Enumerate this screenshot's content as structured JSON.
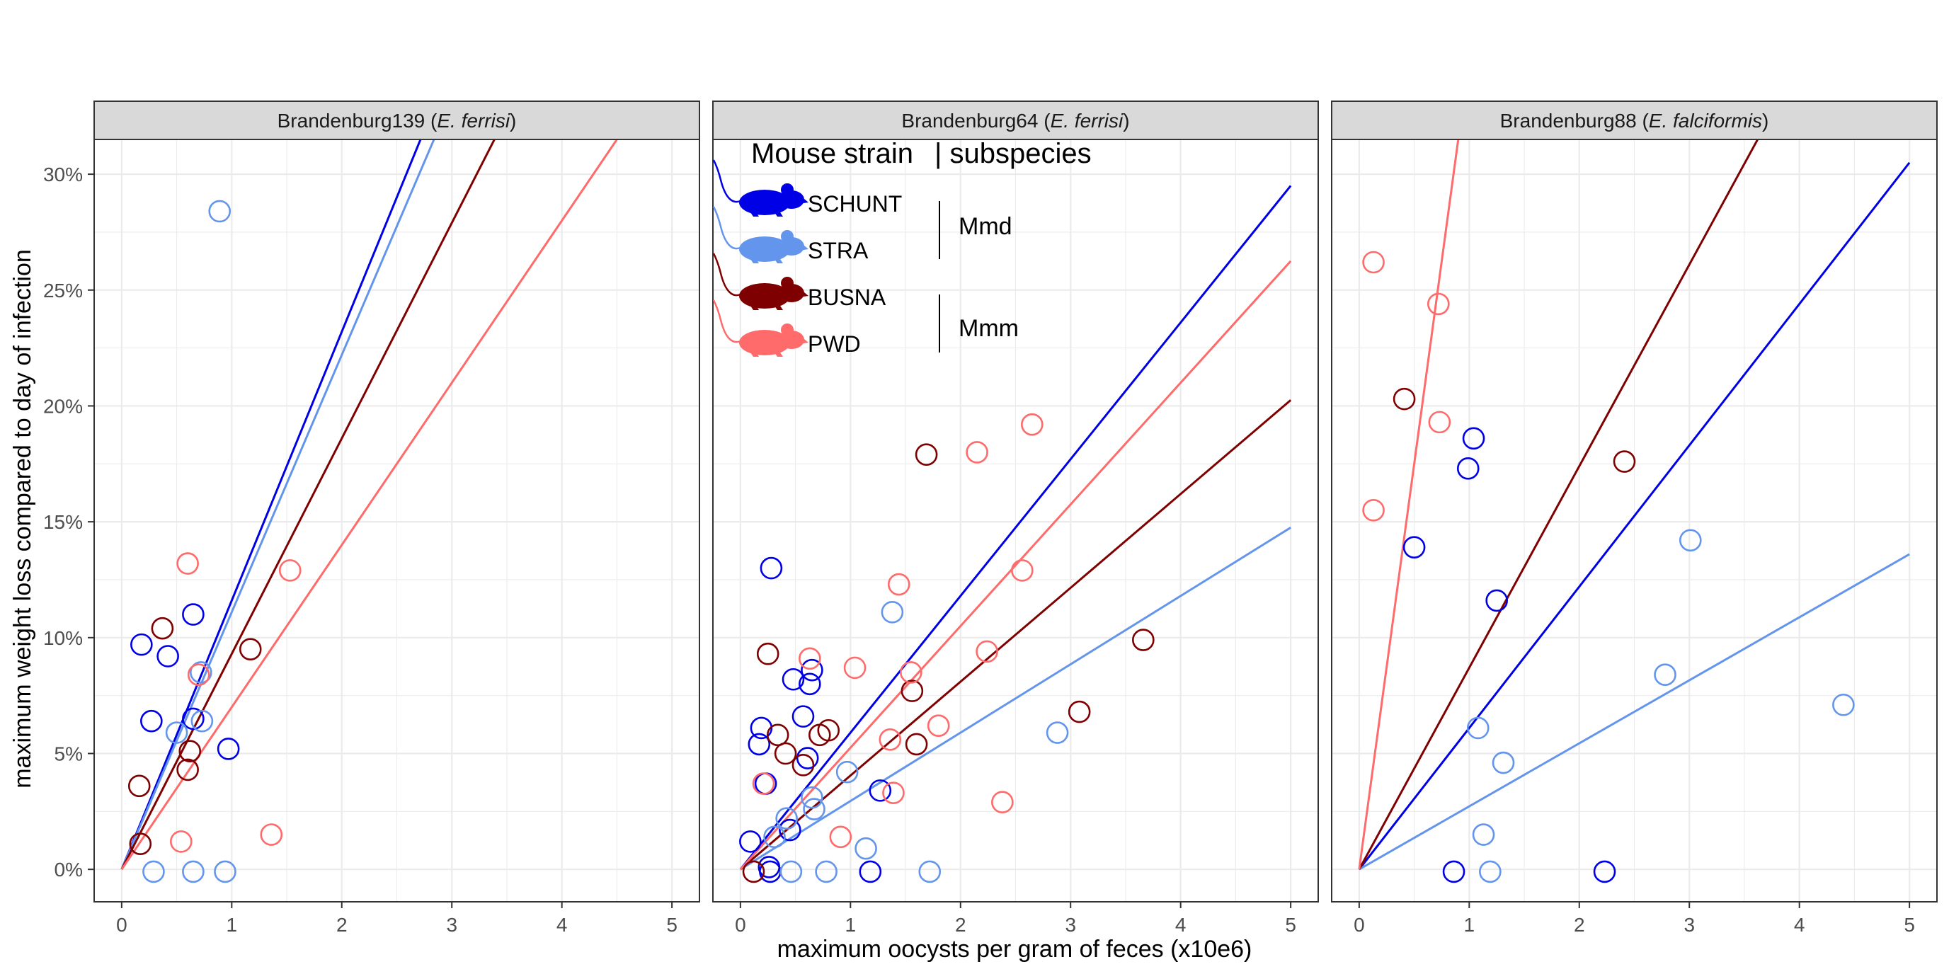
{
  "chart_data": {
    "type": "scatter",
    "xlabel": "maximum oocysts per gram of feces (x10e6)",
    "ylabel": "maximum weight loss compared to day of infection",
    "xlim": [
      -0.25,
      5.25
    ],
    "ylim": [
      -1.4,
      31.5
    ],
    "x_ticks": [
      "0",
      "1",
      "2",
      "3",
      "4",
      "5"
    ],
    "y_ticks": [
      "0%",
      "5%",
      "10%",
      "15%",
      "20%",
      "25%",
      "30%"
    ],
    "grid": true,
    "series_colors": {
      "SCHUNT": "#0000e6",
      "STRA": "#6495ed",
      "BUSNA": "#7f0000",
      "PWD": "#ff6a6a"
    },
    "legend": {
      "title": "Mouse strain",
      "title_right": "| subspecies",
      "items": [
        {
          "label": "SCHUNT",
          "color": "#0000e6"
        },
        {
          "label": "STRA",
          "color": "#6495ed"
        },
        {
          "label": "BUSNA",
          "color": "#7f0000"
        },
        {
          "label": "PWD",
          "color": "#ff6a6a"
        }
      ],
      "groups": [
        {
          "label": "Mmd"
        },
        {
          "label": "Mmm"
        }
      ],
      "icon": "mouse-silhouette-icon"
    },
    "panels": [
      {
        "strip_main": "Brandenburg139 (",
        "strip_italic": "E. ferrisi",
        "strip_end": ")",
        "lines": [
          {
            "series": "SCHUNT",
            "slope": 11.6
          },
          {
            "series": "STRA",
            "slope": 11.1
          },
          {
            "series": "BUSNA",
            "slope": 9.3
          },
          {
            "series": "PWD",
            "slope": 7.0
          }
        ],
        "points": [
          {
            "series": "SCHUNT",
            "x": 0.18,
            "y": 9.7
          },
          {
            "series": "SCHUNT",
            "x": 0.42,
            "y": 9.2
          },
          {
            "series": "SCHUNT",
            "x": 0.65,
            "y": 11.0
          },
          {
            "series": "SCHUNT",
            "x": 0.27,
            "y": 6.4
          },
          {
            "series": "SCHUNT",
            "x": 0.65,
            "y": 6.5
          },
          {
            "series": "SCHUNT",
            "x": 0.97,
            "y": 5.2
          },
          {
            "series": "STRA",
            "x": 0.89,
            "y": 28.4
          },
          {
            "series": "STRA",
            "x": 0.72,
            "y": 8.5
          },
          {
            "series": "STRA",
            "x": 0.5,
            "y": 5.9
          },
          {
            "series": "STRA",
            "x": 0.73,
            "y": 6.4
          },
          {
            "series": "STRA",
            "x": 0.29,
            "y": -0.1
          },
          {
            "series": "STRA",
            "x": 0.65,
            "y": -0.1
          },
          {
            "series": "STRA",
            "x": 0.94,
            "y": -0.1
          },
          {
            "series": "BUSNA",
            "x": 0.37,
            "y": 10.4
          },
          {
            "series": "BUSNA",
            "x": 1.17,
            "y": 9.5
          },
          {
            "series": "BUSNA",
            "x": 0.16,
            "y": 3.6
          },
          {
            "series": "BUSNA",
            "x": 0.62,
            "y": 5.1
          },
          {
            "series": "BUSNA",
            "x": 0.6,
            "y": 4.3
          },
          {
            "series": "BUSNA",
            "x": 0.17,
            "y": 1.1
          },
          {
            "series": "PWD",
            "x": 0.6,
            "y": 13.2
          },
          {
            "series": "PWD",
            "x": 1.53,
            "y": 12.9
          },
          {
            "series": "PWD",
            "x": 0.7,
            "y": 8.4
          },
          {
            "series": "PWD",
            "x": 0.54,
            "y": 1.2
          },
          {
            "series": "PWD",
            "x": 1.36,
            "y": 1.5
          }
        ]
      },
      {
        "strip_main": "Brandenburg64 (",
        "strip_italic": "E. ferrisi",
        "strip_end": ")",
        "lines": [
          {
            "series": "SCHUNT",
            "slope": 5.9
          },
          {
            "series": "STRA",
            "slope": 2.95
          },
          {
            "series": "BUSNA",
            "slope": 4.05
          },
          {
            "series": "PWD",
            "slope": 5.25
          }
        ],
        "points": [
          {
            "series": "SCHUNT",
            "x": 0.28,
            "y": 13.0
          },
          {
            "series": "SCHUNT",
            "x": 0.48,
            "y": 8.2
          },
          {
            "series": "SCHUNT",
            "x": 0.63,
            "y": 8.0
          },
          {
            "series": "SCHUNT",
            "x": 0.65,
            "y": 8.6
          },
          {
            "series": "SCHUNT",
            "x": 0.57,
            "y": 6.6
          },
          {
            "series": "SCHUNT",
            "x": 0.19,
            "y": 6.1
          },
          {
            "series": "SCHUNT",
            "x": 0.17,
            "y": 5.4
          },
          {
            "series": "SCHUNT",
            "x": 0.61,
            "y": 4.8
          },
          {
            "series": "SCHUNT",
            "x": 0.23,
            "y": 3.7
          },
          {
            "series": "SCHUNT",
            "x": 1.27,
            "y": 3.4
          },
          {
            "series": "SCHUNT",
            "x": 0.45,
            "y": 1.7
          },
          {
            "series": "SCHUNT",
            "x": 0.09,
            "y": 1.2
          },
          {
            "series": "SCHUNT",
            "x": 0.26,
            "y": 0.1
          },
          {
            "series": "SCHUNT",
            "x": 0.27,
            "y": -0.1
          },
          {
            "series": "SCHUNT",
            "x": 1.18,
            "y": -0.1
          },
          {
            "series": "STRA",
            "x": 1.38,
            "y": 11.1
          },
          {
            "series": "STRA",
            "x": 2.88,
            "y": 5.9
          },
          {
            "series": "STRA",
            "x": 0.97,
            "y": 4.2
          },
          {
            "series": "STRA",
            "x": 0.65,
            "y": 3.1
          },
          {
            "series": "STRA",
            "x": 0.67,
            "y": 2.6
          },
          {
            "series": "STRA",
            "x": 0.42,
            "y": 2.2
          },
          {
            "series": "STRA",
            "x": 0.31,
            "y": 1.4
          },
          {
            "series": "STRA",
            "x": 1.14,
            "y": 0.9
          },
          {
            "series": "STRA",
            "x": 0.46,
            "y": -0.1
          },
          {
            "series": "STRA",
            "x": 0.78,
            "y": -0.1
          },
          {
            "series": "STRA",
            "x": 1.72,
            "y": -0.1
          },
          {
            "series": "BUSNA",
            "x": 1.69,
            "y": 17.9
          },
          {
            "series": "BUSNA",
            "x": 3.66,
            "y": 9.9
          },
          {
            "series": "BUSNA",
            "x": 0.25,
            "y": 9.3
          },
          {
            "series": "BUSNA",
            "x": 1.56,
            "y": 7.7
          },
          {
            "series": "BUSNA",
            "x": 3.08,
            "y": 6.8
          },
          {
            "series": "BUSNA",
            "x": 0.8,
            "y": 6.0
          },
          {
            "series": "BUSNA",
            "x": 0.72,
            "y": 5.8
          },
          {
            "series": "BUSNA",
            "x": 0.34,
            "y": 5.8
          },
          {
            "series": "BUSNA",
            "x": 1.6,
            "y": 5.4
          },
          {
            "series": "BUSNA",
            "x": 0.41,
            "y": 5.0
          },
          {
            "series": "BUSNA",
            "x": 0.57,
            "y": 4.5
          },
          {
            "series": "BUSNA",
            "x": 0.12,
            "y": -0.1
          },
          {
            "series": "PWD",
            "x": 2.65,
            "y": 19.2
          },
          {
            "series": "PWD",
            "x": 2.15,
            "y": 18.0
          },
          {
            "series": "PWD",
            "x": 2.56,
            "y": 12.9
          },
          {
            "series": "PWD",
            "x": 1.44,
            "y": 12.3
          },
          {
            "series": "PWD",
            "x": 2.24,
            "y": 9.4
          },
          {
            "series": "PWD",
            "x": 0.63,
            "y": 9.1
          },
          {
            "series": "PWD",
            "x": 1.04,
            "y": 8.7
          },
          {
            "series": "PWD",
            "x": 1.55,
            "y": 8.5
          },
          {
            "series": "PWD",
            "x": 1.8,
            "y": 6.2
          },
          {
            "series": "PWD",
            "x": 1.36,
            "y": 5.6
          },
          {
            "series": "PWD",
            "x": 1.39,
            "y": 3.3
          },
          {
            "series": "PWD",
            "x": 2.38,
            "y": 2.9
          },
          {
            "series": "PWD",
            "x": 0.91,
            "y": 1.4
          },
          {
            "series": "PWD",
            "x": 0.21,
            "y": 3.7
          }
        ]
      },
      {
        "strip_main": "Brandenburg88 (",
        "strip_italic": "E. falciformis",
        "strip_end": ")",
        "lines": [
          {
            "series": "SCHUNT",
            "slope": 6.1
          },
          {
            "series": "STRA",
            "slope": 2.72
          },
          {
            "series": "BUSNA",
            "slope": 8.7
          },
          {
            "series": "PWD",
            "slope": 35.0
          }
        ],
        "points": [
          {
            "series": "SCHUNT",
            "x": 1.04,
            "y": 18.6
          },
          {
            "series": "SCHUNT",
            "x": 0.99,
            "y": 17.3
          },
          {
            "series": "SCHUNT",
            "x": 0.5,
            "y": 13.9
          },
          {
            "series": "SCHUNT",
            "x": 1.25,
            "y": 11.6
          },
          {
            "series": "SCHUNT",
            "x": 0.86,
            "y": -0.1
          },
          {
            "series": "SCHUNT",
            "x": 2.23,
            "y": -0.1
          },
          {
            "series": "STRA",
            "x": 3.01,
            "y": 14.2
          },
          {
            "series": "STRA",
            "x": 2.78,
            "y": 8.4
          },
          {
            "series": "STRA",
            "x": 4.4,
            "y": 7.1
          },
          {
            "series": "STRA",
            "x": 1.08,
            "y": 6.1
          },
          {
            "series": "STRA",
            "x": 1.31,
            "y": 4.6
          },
          {
            "series": "STRA",
            "x": 1.13,
            "y": 1.5
          },
          {
            "series": "STRA",
            "x": 1.19,
            "y": -0.1
          },
          {
            "series": "BUSNA",
            "x": 0.41,
            "y": 20.3
          },
          {
            "series": "BUSNA",
            "x": 2.41,
            "y": 17.6
          },
          {
            "series": "PWD",
            "x": 0.13,
            "y": 26.2
          },
          {
            "series": "PWD",
            "x": 0.72,
            "y": 24.4
          },
          {
            "series": "PWD",
            "x": 0.73,
            "y": 19.3
          },
          {
            "series": "PWD",
            "x": 0.13,
            "y": 15.5
          }
        ]
      }
    ]
  }
}
